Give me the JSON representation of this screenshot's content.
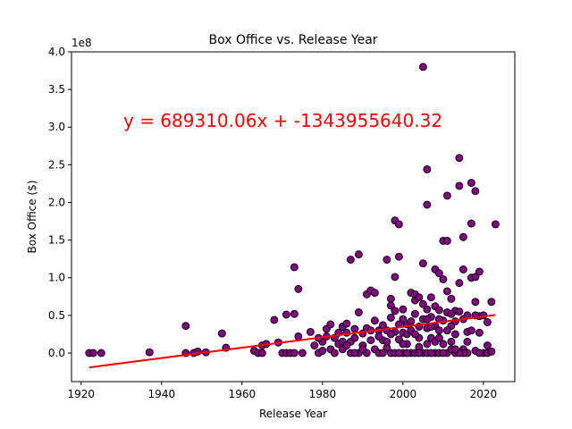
{
  "chart_data": {
    "type": "scatter",
    "title": "Box Office vs. Release Year",
    "xlabel": "Release Year",
    "ylabel": "Box Office ($)",
    "y_offset_label": "1e8",
    "xlim": [
      1917.6,
      2027.8
    ],
    "ylim": [
      -0.38,
      4.0
    ],
    "y_unit_multiplier": 100000000,
    "x_ticks": [
      1920,
      1940,
      1960,
      1980,
      2000,
      2020
    ],
    "y_ticks": [
      0.0,
      0.5,
      1.0,
      1.5,
      2.0,
      2.5,
      3.0,
      3.5,
      4.0
    ],
    "y_tick_labels": [
      "0.0",
      "0.5",
      "1.0",
      "1.5",
      "2.0",
      "2.5",
      "3.0",
      "3.5",
      "4.0"
    ],
    "grid": false,
    "marker_color": "#800080",
    "marker_edge_color": "#000000",
    "regression": {
      "equation": "y = 689310.06x + -1343955640.32",
      "slope": 689310.06,
      "intercept": -1343955640.32,
      "x_range": [
        1922,
        2023
      ],
      "color": "#ff0000"
    },
    "points": [
      [
        1922,
        0.0
      ],
      [
        1923,
        0.0
      ],
      [
        1925,
        0.0
      ],
      [
        1937,
        0.01
      ],
      [
        1946,
        0.36
      ],
      [
        1946,
        0.0
      ],
      [
        1948,
        0.0
      ],
      [
        1949,
        0.02
      ],
      [
        1951,
        0.01
      ],
      [
        1955,
        0.26
      ],
      [
        1956,
        0.07
      ],
      [
        1963,
        0.03
      ],
      [
        1964,
        0.0
      ],
      [
        1965,
        0.1
      ],
      [
        1965,
        0.0
      ],
      [
        1966,
        0.12
      ],
      [
        1968,
        0.44
      ],
      [
        1969,
        0.14
      ],
      [
        1970,
        0.0
      ],
      [
        1971,
        0.51
      ],
      [
        1971,
        0.0
      ],
      [
        1972,
        0.0
      ],
      [
        1973,
        1.14
      ],
      [
        1973,
        0.52
      ],
      [
        1973,
        0.0
      ],
      [
        1974,
        0.85
      ],
      [
        1974,
        0.22
      ],
      [
        1975,
        0.0
      ],
      [
        1977,
        0.28
      ],
      [
        1978,
        0.1
      ],
      [
        1979,
        0.0
      ],
      [
        1980,
        0.03
      ],
      [
        1980,
        0.15
      ],
      [
        1981,
        0.32
      ],
      [
        1981,
        0.22
      ],
      [
        1982,
        0.38
      ],
      [
        1982,
        0.05
      ],
      [
        1983,
        0.0
      ],
      [
        1984,
        0.12
      ],
      [
        1984,
        0.27
      ],
      [
        1985,
        0.35
      ],
      [
        1985,
        0.05
      ],
      [
        1986,
        0.39
      ],
      [
        1986,
        0.27
      ],
      [
        1987,
        1.24
      ],
      [
        1987,
        0.0
      ],
      [
        1987,
        0.15
      ],
      [
        1988,
        0.2
      ],
      [
        1988,
        0.32
      ],
      [
        1989,
        1.31
      ],
      [
        1989,
        0.54
      ],
      [
        1989,
        0.0
      ],
      [
        1990,
        0.26
      ],
      [
        1990,
        0.1
      ],
      [
        1991,
        0.78
      ],
      [
        1991,
        0.33
      ],
      [
        1991,
        0.0
      ],
      [
        1992,
        0.83
      ],
      [
        1992,
        0.17
      ],
      [
        1993,
        0.8
      ],
      [
        1993,
        0.43
      ],
      [
        1993,
        0.05
      ],
      [
        1994,
        0.3
      ],
      [
        1994,
        0.0
      ],
      [
        1995,
        0.37
      ],
      [
        1995,
        0.17
      ],
      [
        1996,
        1.24
      ],
      [
        1996,
        0.07
      ],
      [
        1996,
        0.3
      ],
      [
        1997,
        0.72
      ],
      [
        1997,
        0.47
      ],
      [
        1997,
        0.63
      ],
      [
        1997,
        0.0
      ],
      [
        1998,
        1.76
      ],
      [
        1998,
        1.01
      ],
      [
        1998,
        0.56
      ],
      [
        1998,
        0.0
      ],
      [
        1999,
        1.71
      ],
      [
        1999,
        1.28
      ],
      [
        1999,
        0.38
      ],
      [
        1999,
        0.18
      ],
      [
        2000,
        0.58
      ],
      [
        2000,
        0.45
      ],
      [
        2000,
        0.27
      ],
      [
        2000,
        0.0
      ],
      [
        2001,
        0.38
      ],
      [
        2001,
        0.12
      ],
      [
        2002,
        0.8
      ],
      [
        2002,
        0.42
      ],
      [
        2002,
        0.0
      ],
      [
        2003,
        0.7
      ],
      [
        2003,
        0.78
      ],
      [
        2003,
        0.52
      ],
      [
        2003,
        0.0
      ],
      [
        2004,
        0.74
      ],
      [
        2004,
        0.35
      ],
      [
        2004,
        0.08
      ],
      [
        2005,
        3.8
      ],
      [
        2005,
        1.19
      ],
      [
        2005,
        0.65
      ],
      [
        2005,
        0.45
      ],
      [
        2005,
        0.0
      ],
      [
        2006,
        2.44
      ],
      [
        2006,
        1.97
      ],
      [
        2006,
        0.58
      ],
      [
        2006,
        0.33
      ],
      [
        2006,
        0.0
      ],
      [
        2007,
        0.74
      ],
      [
        2007,
        0.48
      ],
      [
        2007,
        0.2
      ],
      [
        2008,
        1.11
      ],
      [
        2008,
        0.62
      ],
      [
        2008,
        0.36
      ],
      [
        2008,
        0.0
      ],
      [
        2009,
        1.06
      ],
      [
        2009,
        0.57
      ],
      [
        2009,
        0.3
      ],
      [
        2009,
        0.0
      ],
      [
        2010,
        1.49
      ],
      [
        2010,
        0.98
      ],
      [
        2010,
        0.43
      ],
      [
        2010,
        0.12
      ],
      [
        2011,
        2.09
      ],
      [
        2011,
        1.49
      ],
      [
        2011,
        0.82
      ],
      [
        2011,
        0.54
      ],
      [
        2011,
        0.0
      ],
      [
        2012,
        0.72
      ],
      [
        2012,
        0.36
      ],
      [
        2012,
        0.15
      ],
      [
        2013,
        0.56
      ],
      [
        2013,
        0.42
      ],
      [
        2013,
        0.0
      ],
      [
        2014,
        2.59
      ],
      [
        2014,
        2.22
      ],
      [
        2014,
        0.93
      ],
      [
        2014,
        0.55
      ],
      [
        2015,
        1.54
      ],
      [
        2015,
        1.11
      ],
      [
        2015,
        0.45
      ],
      [
        2015,
        0.05
      ],
      [
        2016,
        0.28
      ],
      [
        2016,
        0.0
      ],
      [
        2017,
        2.26
      ],
      [
        2017,
        1.72
      ],
      [
        2017,
        1.0
      ],
      [
        2017,
        0.3
      ],
      [
        2018,
        2.15
      ],
      [
        2018,
        1.01
      ],
      [
        2018,
        0.68
      ],
      [
        2018,
        0.03
      ],
      [
        2019,
        1.08
      ],
      [
        2019,
        0.49
      ],
      [
        2019,
        0.27
      ],
      [
        2020,
        0.0
      ],
      [
        2021,
        0.41
      ],
      [
        2021,
        0.1
      ],
      [
        2021,
        0.0
      ],
      [
        2022,
        0.68
      ],
      [
        2022,
        0.02
      ],
      [
        2023,
        1.71
      ],
      [
        1979,
        0.2
      ],
      [
        1985,
        0.15
      ],
      [
        1990,
        0.05
      ],
      [
        1992,
        0.3
      ],
      [
        1994,
        0.22
      ],
      [
        1996,
        0.15
      ],
      [
        1998,
        0.28
      ],
      [
        2000,
        0.12
      ],
      [
        2001,
        0.25
      ],
      [
        2002,
        0.3
      ],
      [
        2004,
        0.2
      ],
      [
        2006,
        0.12
      ],
      [
        2007,
        0.0
      ],
      [
        2008,
        0.15
      ],
      [
        2009,
        0.2
      ],
      [
        2010,
        0.0
      ],
      [
        2012,
        0.05
      ],
      [
        2013,
        0.25
      ],
      [
        2015,
        0.0
      ],
      [
        2016,
        0.5
      ],
      [
        2019,
        0.0
      ],
      [
        1988,
        0.0
      ],
      [
        1995,
        0.0
      ],
      [
        1997,
        0.25
      ],
      [
        2003,
        0.25
      ],
      [
        2011,
        0.3
      ],
      [
        2014,
        0.0
      ],
      [
        2020,
        0.5
      ],
      [
        1983,
        0.2
      ],
      [
        1986,
        0.1
      ],
      [
        1999,
        0.0
      ],
      [
        2001,
        0.0
      ],
      [
        2004,
        0.0
      ],
      [
        2006,
        0.45
      ],
      [
        2007,
        0.35
      ],
      [
        2009,
        0.45
      ],
      [
        2012,
        0.52
      ],
      [
        2013,
        0.05
      ],
      [
        2016,
        0.15
      ],
      [
        2018,
        0.5
      ]
    ]
  }
}
